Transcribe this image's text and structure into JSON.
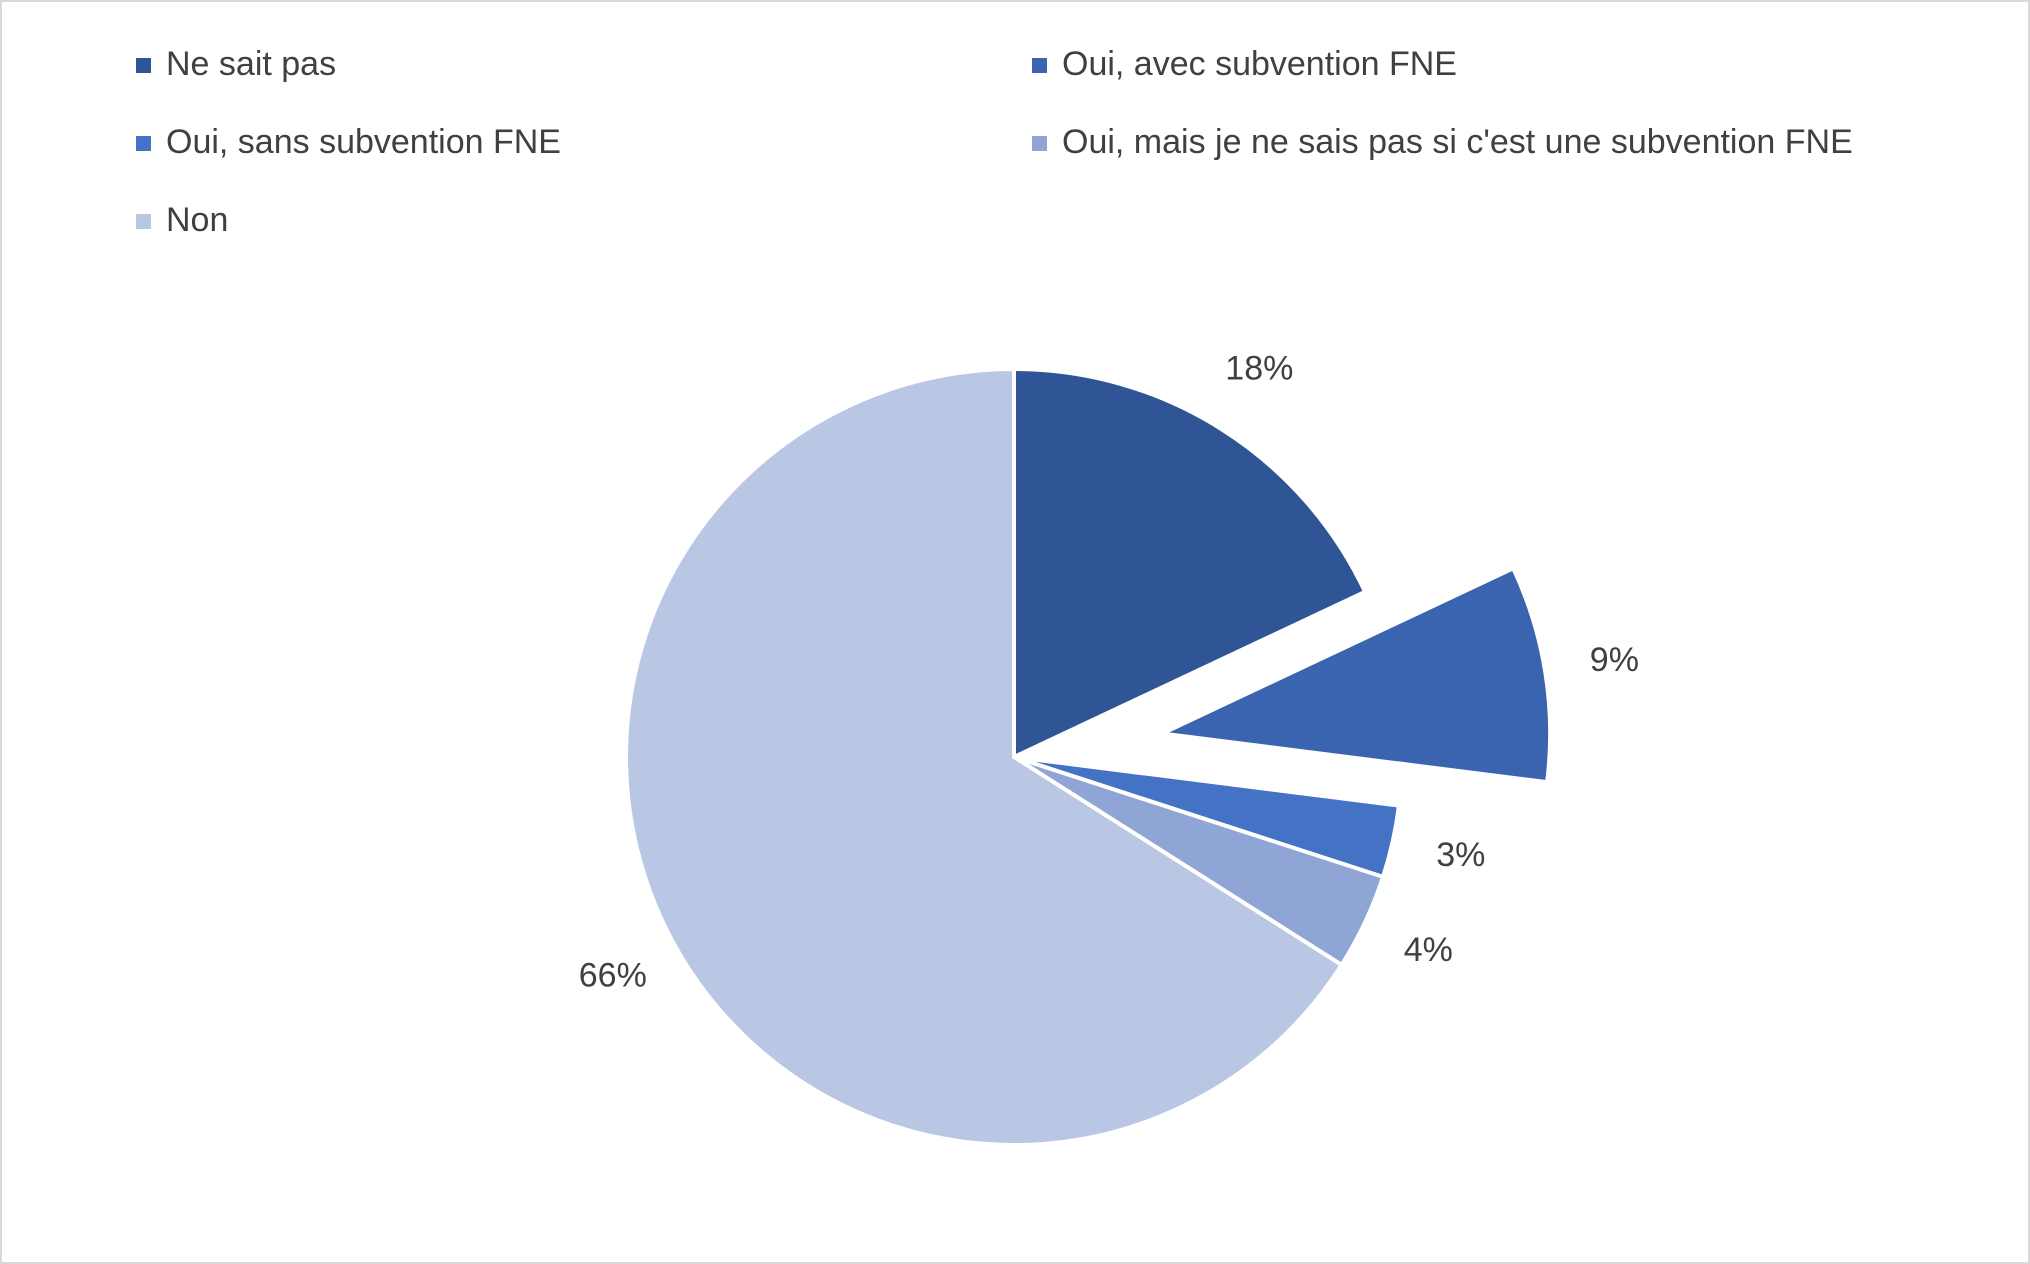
{
  "chart_data": {
    "type": "pie",
    "categories": [
      "Ne sait pas",
      "Oui, avec subvention FNE",
      "Oui, sans subvention FNE",
      "Oui, mais je ne sais pas si c'est une subvention FNE",
      "Non"
    ],
    "values": [
      18,
      9,
      3,
      4,
      66
    ],
    "value_labels": [
      "18%",
      "9%",
      "3%",
      "4%",
      "66%"
    ],
    "colors": [
      "#2f5597",
      "#3a64b0",
      "#4472c4",
      "#8fa5d6",
      "#b9c6e4"
    ],
    "exploded": [
      false,
      true,
      false,
      false,
      false
    ],
    "legend": "top"
  }
}
